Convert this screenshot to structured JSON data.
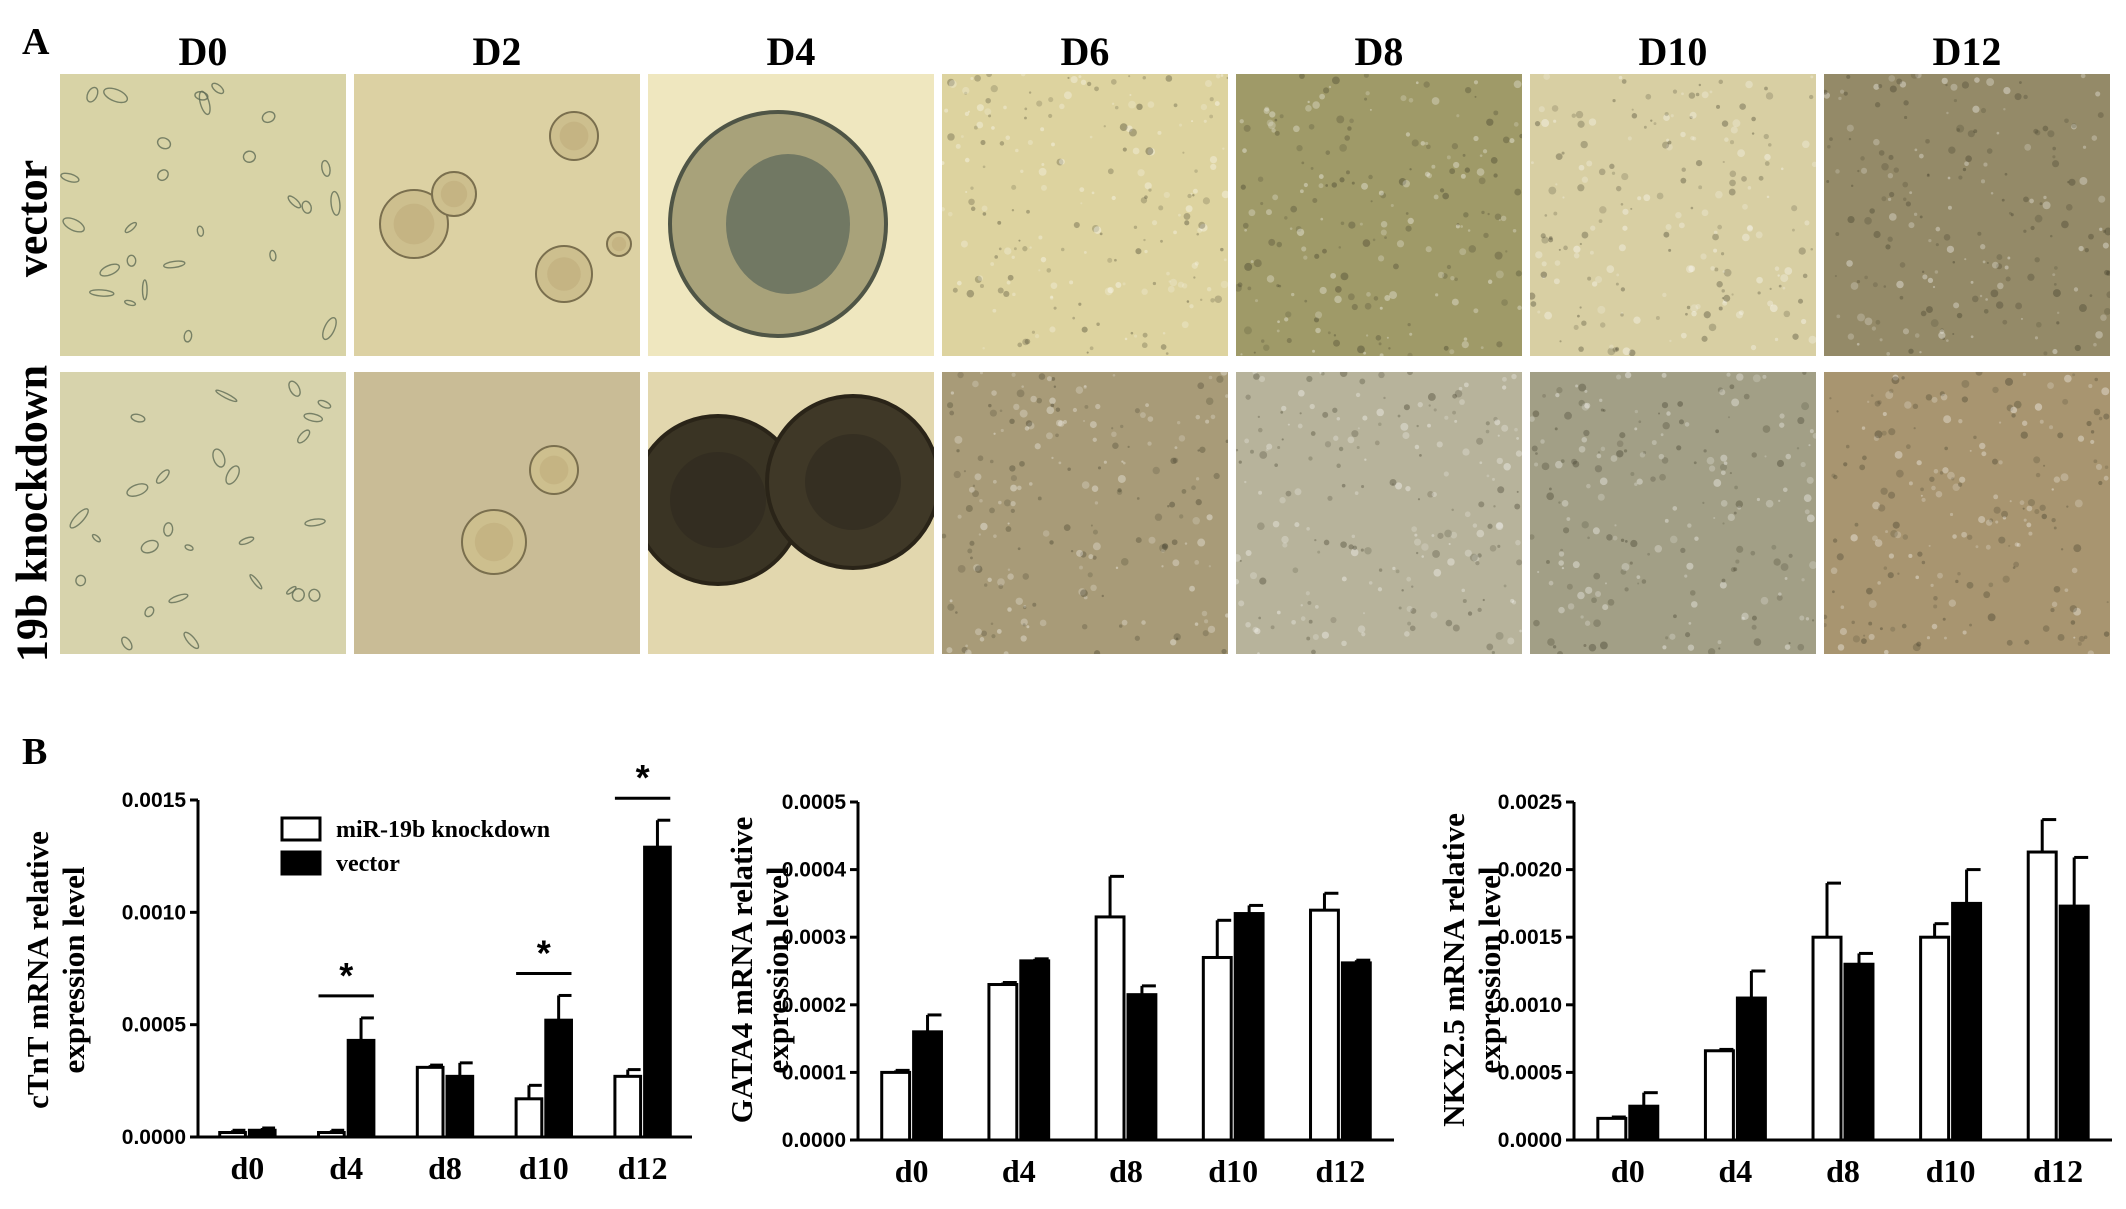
{
  "panel_a": {
    "letter": "A",
    "columns": [
      "D0",
      "D2",
      "D4",
      "D6",
      "D8",
      "D10",
      "D12"
    ],
    "rows": [
      "vector",
      "19b knockdown"
    ],
    "tiles": [
      {
        "row": 0,
        "col": 0,
        "bg": "#d8d3a6",
        "content": "sparse-cells"
      },
      {
        "row": 0,
        "col": 1,
        "bg": "#dcd1a3",
        "content": "small-spheres"
      },
      {
        "row": 0,
        "col": 2,
        "bg": "#efe7bf",
        "content": "large-sphere"
      },
      {
        "row": 0,
        "col": 3,
        "bg": "#ddd39f",
        "content": "dense-texture"
      },
      {
        "row": 0,
        "col": 4,
        "bg": "#9f9a68",
        "content": "dense-texture"
      },
      {
        "row": 0,
        "col": 5,
        "bg": "#d8cfa3",
        "content": "dense-texture"
      },
      {
        "row": 0,
        "col": 6,
        "bg": "#948a68",
        "content": "dense-texture"
      },
      {
        "row": 1,
        "col": 0,
        "bg": "#d7d3ac",
        "content": "sparse-cells"
      },
      {
        "row": 1,
        "col": 1,
        "bg": "#c9bc96",
        "content": "small-spheres"
      },
      {
        "row": 1,
        "col": 2,
        "bg": "#e2d7ae",
        "content": "two-dark-spheres"
      },
      {
        "row": 1,
        "col": 3,
        "bg": "#a89b78",
        "content": "dense-texture"
      },
      {
        "row": 1,
        "col": 4,
        "bg": "#b7b39b",
        "content": "dense-texture"
      },
      {
        "row": 1,
        "col": 5,
        "bg": "#a29f86",
        "content": "dense-texture"
      },
      {
        "row": 1,
        "col": 6,
        "bg": "#a89570",
        "content": "dense-texture"
      }
    ]
  },
  "panel_b": {
    "letter": "B"
  },
  "legend": {
    "items": [
      "miR-19b knockdown",
      "vector"
    ]
  },
  "chart_data": [
    {
      "type": "bar",
      "ylabel": "cTnT mRNA relative expression level",
      "ylabel_lines": [
        "cTnT mRNA relative",
        "expression level"
      ],
      "categories": [
        "d0",
        "d4",
        "d8",
        "d10",
        "d12"
      ],
      "ylim": [
        0,
        0.0015
      ],
      "yticks": [
        "0.0000",
        "0.0005",
        "0.0010",
        "0.0015"
      ],
      "series": [
        {
          "name": "miR-19b knockdown",
          "values": [
            2e-05,
            2e-05,
            0.00031,
            0.00017,
            0.00027
          ],
          "errors": [
            1e-05,
            1e-05,
            1e-05,
            6e-05,
            3e-05
          ]
        },
        {
          "name": "vector",
          "values": [
            3e-05,
            0.00043,
            0.00027,
            0.00052,
            0.00129
          ],
          "errors": [
            1e-05,
            0.0001,
            6e-05,
            0.00011,
            0.00012
          ]
        }
      ],
      "significance": [
        {
          "category": "d4",
          "label": "*"
        },
        {
          "category": "d10",
          "label": "*"
        },
        {
          "category": "d12",
          "label": "*"
        }
      ]
    },
    {
      "type": "bar",
      "ylabel": "GATA4 mRNA relative expression level",
      "ylabel_lines": [
        "GATA4 mRNA relative",
        "expression level"
      ],
      "categories": [
        "d0",
        "d4",
        "d8",
        "d10",
        "d12"
      ],
      "ylim": [
        0,
        0.0005
      ],
      "yticks": [
        "0.0000",
        "0.0001",
        "0.0002",
        "0.0003",
        "0.0004",
        "0.0005"
      ],
      "series": [
        {
          "name": "miR-19b knockdown",
          "values": [
            0.0001,
            0.00023,
            0.00033,
            0.00027,
            0.00034
          ],
          "errors": [
            3e-06,
            3e-06,
            6e-05,
            5.5e-05,
            2.5e-05
          ]
        },
        {
          "name": "vector",
          "values": [
            0.00016,
            0.000265,
            0.000215,
            0.000335,
            0.000262
          ],
          "errors": [
            2.5e-05,
            3e-06,
            1.3e-05,
            1.2e-05,
            4e-06
          ]
        }
      ]
    },
    {
      "type": "bar",
      "ylabel": "NKX2.5 mRNA relative expression level",
      "ylabel_lines": [
        "NKX2.5 mRNA relative",
        "expression level"
      ],
      "categories": [
        "d0",
        "d4",
        "d8",
        "d10",
        "d12"
      ],
      "ylim": [
        0,
        0.0025
      ],
      "yticks": [
        "0.0000",
        "0.0005",
        "0.0010",
        "0.0015",
        "0.0020",
        "0.0025"
      ],
      "series": [
        {
          "name": "miR-19b knockdown",
          "values": [
            0.00016,
            0.00066,
            0.0015,
            0.0015,
            0.00213
          ],
          "errors": [
            1e-05,
            1e-05,
            0.0004,
            0.0001,
            0.00024
          ]
        },
        {
          "name": "vector",
          "values": [
            0.00025,
            0.00105,
            0.0013,
            0.00175,
            0.00173
          ],
          "errors": [
            0.0001,
            0.0002,
            8e-05,
            0.00025,
            0.00036
          ]
        }
      ]
    }
  ]
}
